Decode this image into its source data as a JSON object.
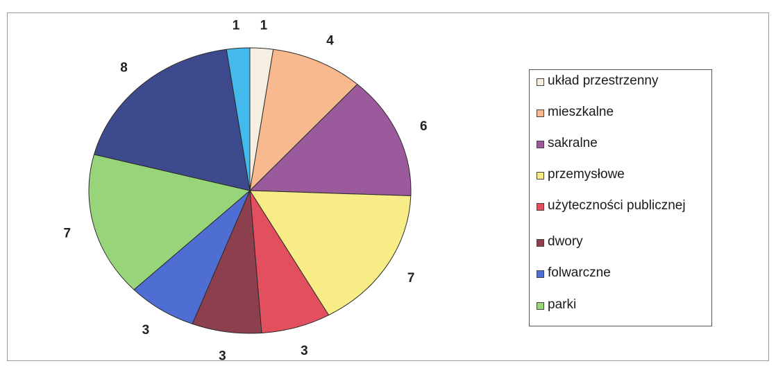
{
  "chart_data": {
    "type": "pie",
    "slices": [
      {
        "label": "układ przestrzenny",
        "value": 1,
        "color": "#f7eee2"
      },
      {
        "label": "mieszkalne",
        "value": 4,
        "color": "#f7b98d"
      },
      {
        "label": "sakralne",
        "value": 6,
        "color": "#9b5a9b"
      },
      {
        "label": "przemysłowe",
        "value": 7,
        "color": "#f8ec86"
      },
      {
        "label": "użyteczności publicznej",
        "value": 3,
        "color": "#e2505f"
      },
      {
        "label": "dwory",
        "value": 3,
        "color": "#8e3f4d"
      },
      {
        "label": "folwarczne",
        "value": 3,
        "color": "#4f6ed4"
      },
      {
        "label": "parki",
        "value": 7,
        "color": "#97d47a"
      },
      {
        "label": "",
        "value": 8,
        "color": "#3d4a8e"
      },
      {
        "label": "",
        "value": 1,
        "color": "#45b9ec"
      }
    ],
    "legend_position": "right",
    "data_labels_shown": true
  }
}
